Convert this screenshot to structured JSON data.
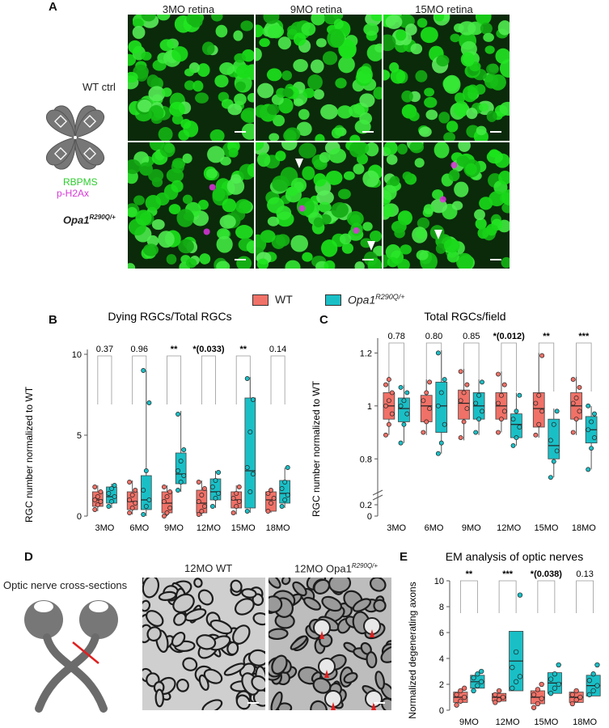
{
  "panelA": {
    "letter": "A",
    "columns": [
      "3MO retina",
      "9MO retina",
      "15MO retina"
    ],
    "row_labels": {
      "wt": "WT ctrl",
      "mut_base": "Opa1",
      "mut_sup": "R290Q/+"
    },
    "stain_labels": {
      "green": "RBPMS",
      "magenta": "p-H2Ax"
    },
    "colors": {
      "green": "#39e639",
      "magenta": "#e033e0"
    }
  },
  "legend": {
    "wt_label": "WT",
    "mut_base": "Opa1",
    "mut_sup": "R290Q/+",
    "wt_color": "#f07167",
    "mut_color": "#1abfc6"
  },
  "panelB": {
    "letter": "B",
    "title": "Dying RGCs/Total RGCs",
    "ylabel": "RGC number normalized to WT"
  },
  "panelC": {
    "letter": "C",
    "title": "Total RGCs/field",
    "ylabel": "RGC number normalized to WT"
  },
  "panelD": {
    "letter": "D",
    "left_label": "Optic nerve cross-sections",
    "wt_title": "12MO WT",
    "mut_title_base": "12MO Opa1",
    "mut_title_sup": "R290Q/+"
  },
  "panelE": {
    "letter": "E",
    "title": "EM analysis of optic nerves",
    "ylabel": "Normalized degenerating axons"
  },
  "chart_data": [
    {
      "id": "B",
      "type": "box",
      "title": "Dying RGCs/Total RGCs",
      "ylabel": "RGC number normalized to WT",
      "ylim": [
        0,
        10
      ],
      "yticks": [
        0,
        5,
        10
      ],
      "categories": [
        "3MO",
        "6MO",
        "9MO",
        "12MO",
        "15MO",
        "18MO"
      ],
      "significance": [
        "0.37",
        "0.96",
        "**",
        "*(0.033)",
        "**",
        "0.14"
      ],
      "series": [
        {
          "name": "WT",
          "color": "#f07167",
          "boxes": [
            {
              "q1": 0.6,
              "median": 1.0,
              "q3": 1.5,
              "min": 0.3,
              "max": 1.9,
              "points": [
                0.4,
                0.7,
                0.9,
                1.0,
                1.2,
                1.5,
                1.8
              ]
            },
            {
              "q1": 0.4,
              "median": 0.9,
              "q3": 1.5,
              "min": 0.1,
              "max": 2.2,
              "points": [
                0.2,
                0.5,
                0.8,
                1.0,
                1.3,
                1.6,
                2.1
              ]
            },
            {
              "q1": 0.2,
              "median": 0.8,
              "q3": 1.5,
              "min": 0.0,
              "max": 1.9,
              "points": [
                0.0,
                0.2,
                0.5,
                0.9,
                1.2,
                1.5,
                1.8
              ]
            },
            {
              "q1": 0.2,
              "median": 0.8,
              "q3": 1.6,
              "min": 0.0,
              "max": 2.2,
              "points": [
                0.1,
                0.3,
                0.6,
                0.9,
                1.3,
                1.7,
                2.1
              ]
            },
            {
              "q1": 0.5,
              "median": 1.0,
              "q3": 1.5,
              "min": 0.1,
              "max": 1.9,
              "points": [
                0.2,
                0.6,
                0.9,
                1.1,
                1.4,
                1.8
              ]
            },
            {
              "q1": 0.3,
              "median": 1.0,
              "q3": 1.5,
              "min": 0.2,
              "max": 1.7,
              "points": [
                0.3,
                0.8,
                1.1,
                1.4,
                1.6
              ]
            }
          ]
        },
        {
          "name": "Opa1 R290Q/+",
          "color": "#1abfc6",
          "boxes": [
            {
              "q1": 0.8,
              "median": 1.2,
              "q3": 1.8,
              "min": 0.5,
              "max": 2.0,
              "points": [
                0.6,
                0.9,
                1.2,
                1.4,
                1.7,
                1.9
              ]
            },
            {
              "q1": 0.4,
              "median": 1.0,
              "q3": 2.5,
              "min": 0.0,
              "max": 9.0,
              "points": [
                0.1,
                0.6,
                1.0,
                1.6,
                2.8,
                7.0,
                9.0
              ]
            },
            {
              "q1": 2.0,
              "median": 2.6,
              "q3": 3.9,
              "min": 1.5,
              "max": 6.5,
              "points": [
                1.6,
                2.1,
                2.5,
                2.8,
                3.4,
                4.1,
                6.3
              ]
            },
            {
              "q1": 1.0,
              "median": 1.5,
              "q3": 2.3,
              "min": 0.5,
              "max": 2.8,
              "points": [
                0.6,
                1.1,
                1.4,
                1.8,
                2.2,
                2.7
              ]
            },
            {
              "q1": 0.5,
              "median": 2.8,
              "q3": 7.3,
              "min": 0.2,
              "max": 8.6,
              "points": [
                0.3,
                1.5,
                2.6,
                3.0,
                5.2,
                7.2,
                8.5
              ]
            },
            {
              "q1": 0.8,
              "median": 1.4,
              "q3": 2.2,
              "min": 0.5,
              "max": 3.0,
              "points": [
                0.6,
                1.0,
                1.3,
                1.7,
                2.1,
                3.0
              ]
            }
          ]
        }
      ]
    },
    {
      "id": "C",
      "type": "box",
      "title": "Total RGCs/field",
      "ylabel": "RGC number normalized to WT",
      "ylim": [
        0.7,
        1.3
      ],
      "yticks": [
        0,
        0.2,
        0.8,
        1.0,
        1.2
      ],
      "axis_break": true,
      "categories": [
        "3MO",
        "6MO",
        "9MO",
        "12MO",
        "15MO",
        "18MO"
      ],
      "significance": [
        "0.78",
        "0.80",
        "0.85",
        "*(0.012)",
        "**",
        "***"
      ],
      "series": [
        {
          "name": "WT",
          "color": "#f07167",
          "boxes": [
            {
              "q1": 0.95,
              "median": 1.0,
              "q3": 1.05,
              "min": 0.89,
              "max": 1.11,
              "points": [
                0.89,
                0.93,
                0.97,
                1.0,
                1.02,
                1.05,
                1.08,
                1.1
              ]
            },
            {
              "q1": 0.94,
              "median": 1.0,
              "q3": 1.04,
              "min": 0.89,
              "max": 1.1,
              "points": [
                0.9,
                0.94,
                0.99,
                1.02,
                1.05,
                1.09
              ]
            },
            {
              "q1": 0.95,
              "median": 1.01,
              "q3": 1.06,
              "min": 0.87,
              "max": 1.14,
              "points": [
                0.88,
                0.94,
                0.99,
                1.02,
                1.05,
                1.08,
                1.13
              ]
            },
            {
              "q1": 0.95,
              "median": 1.0,
              "q3": 1.05,
              "min": 0.9,
              "max": 1.13,
              "points": [
                0.9,
                0.95,
                0.98,
                1.01,
                1.04,
                1.08,
                1.12
              ]
            },
            {
              "q1": 0.92,
              "median": 0.99,
              "q3": 1.05,
              "min": 0.88,
              "max": 1.2,
              "points": [
                0.89,
                0.93,
                0.98,
                1.01,
                1.04,
                1.19
              ]
            },
            {
              "q1": 0.95,
              "median": 1.0,
              "q3": 1.05,
              "min": 0.89,
              "max": 1.11,
              "points": [
                0.9,
                0.95,
                0.98,
                1.01,
                1.03,
                1.07,
                1.1
              ]
            }
          ]
        },
        {
          "name": "Opa1 R290Q/+",
          "color": "#1abfc6",
          "boxes": [
            {
              "q1": 0.94,
              "median": 0.99,
              "q3": 1.03,
              "min": 0.86,
              "max": 1.08,
              "points": [
                0.86,
                0.93,
                0.97,
                1.0,
                1.02,
                1.05,
                1.07
              ]
            },
            {
              "q1": 0.9,
              "median": 1.0,
              "q3": 1.09,
              "min": 0.82,
              "max": 1.21,
              "points": [
                0.82,
                0.86,
                0.93,
                1.0,
                1.05,
                1.1,
                1.2
              ]
            },
            {
              "q1": 0.95,
              "median": 1.0,
              "q3": 1.05,
              "min": 0.89,
              "max": 1.1,
              "points": [
                0.9,
                0.95,
                0.98,
                1.01,
                1.04,
                1.09
              ]
            },
            {
              "q1": 0.88,
              "median": 0.93,
              "q3": 0.97,
              "min": 0.85,
              "max": 1.05,
              "points": [
                0.85,
                0.88,
                0.92,
                0.95,
                0.98,
                1.04
              ]
            },
            {
              "q1": 0.8,
              "median": 0.85,
              "q3": 0.95,
              "min": 0.73,
              "max": 0.99,
              "points": [
                0.73,
                0.79,
                0.83,
                0.87,
                0.93,
                0.98
              ]
            },
            {
              "q1": 0.86,
              "median": 0.91,
              "q3": 0.96,
              "min": 0.76,
              "max": 1.0,
              "points": [
                0.76,
                0.84,
                0.88,
                0.91,
                0.94,
                0.97,
                1.0
              ]
            }
          ]
        }
      ]
    },
    {
      "id": "E",
      "type": "bar",
      "title": "EM analysis of optic nerves",
      "ylabel": "Normalized degenerating axons",
      "ylim": [
        0,
        10
      ],
      "yticks": [
        0,
        2,
        4,
        6,
        8,
        10
      ],
      "categories": [
        "9MO",
        "12MO",
        "15MO",
        "18MO"
      ],
      "significance": [
        "**",
        "***",
        "*(0.038)",
        "0.13"
      ],
      "series": [
        {
          "name": "WT",
          "color": "#f07167",
          "values": [
            1.0,
            1.0,
            1.0,
            1.0
          ],
          "errors": [
            0.4,
            0.3,
            0.5,
            0.4
          ],
          "points": [
            [
              0.4,
              0.7,
              1.0,
              1.2,
              1.5,
              1.7
            ],
            [
              0.6,
              0.8,
              1.0,
              1.2,
              1.5
            ],
            [
              0.2,
              0.5,
              0.9,
              1.2,
              1.6,
              2.0
            ],
            [
              0.5,
              0.8,
              1.0,
              1.2,
              1.5
            ]
          ]
        },
        {
          "name": "Opa1 R290Q/+",
          "color": "#1abfc6",
          "values": [
            2.2,
            3.8,
            2.1,
            1.9
          ],
          "errors": [
            0.5,
            2.3,
            0.8,
            0.8
          ],
          "points": [
            [
              1.5,
              1.9,
              2.2,
              2.5,
              2.8,
              3.0
            ],
            [
              1.7,
              2.2,
              2.6,
              3.3,
              4.5,
              8.9
            ],
            [
              1.3,
              1.7,
              2.0,
              2.4,
              2.8,
              3.5
            ],
            [
              1.2,
              1.5,
              1.9,
              2.3,
              2.8,
              3.5
            ]
          ]
        }
      ]
    }
  ]
}
